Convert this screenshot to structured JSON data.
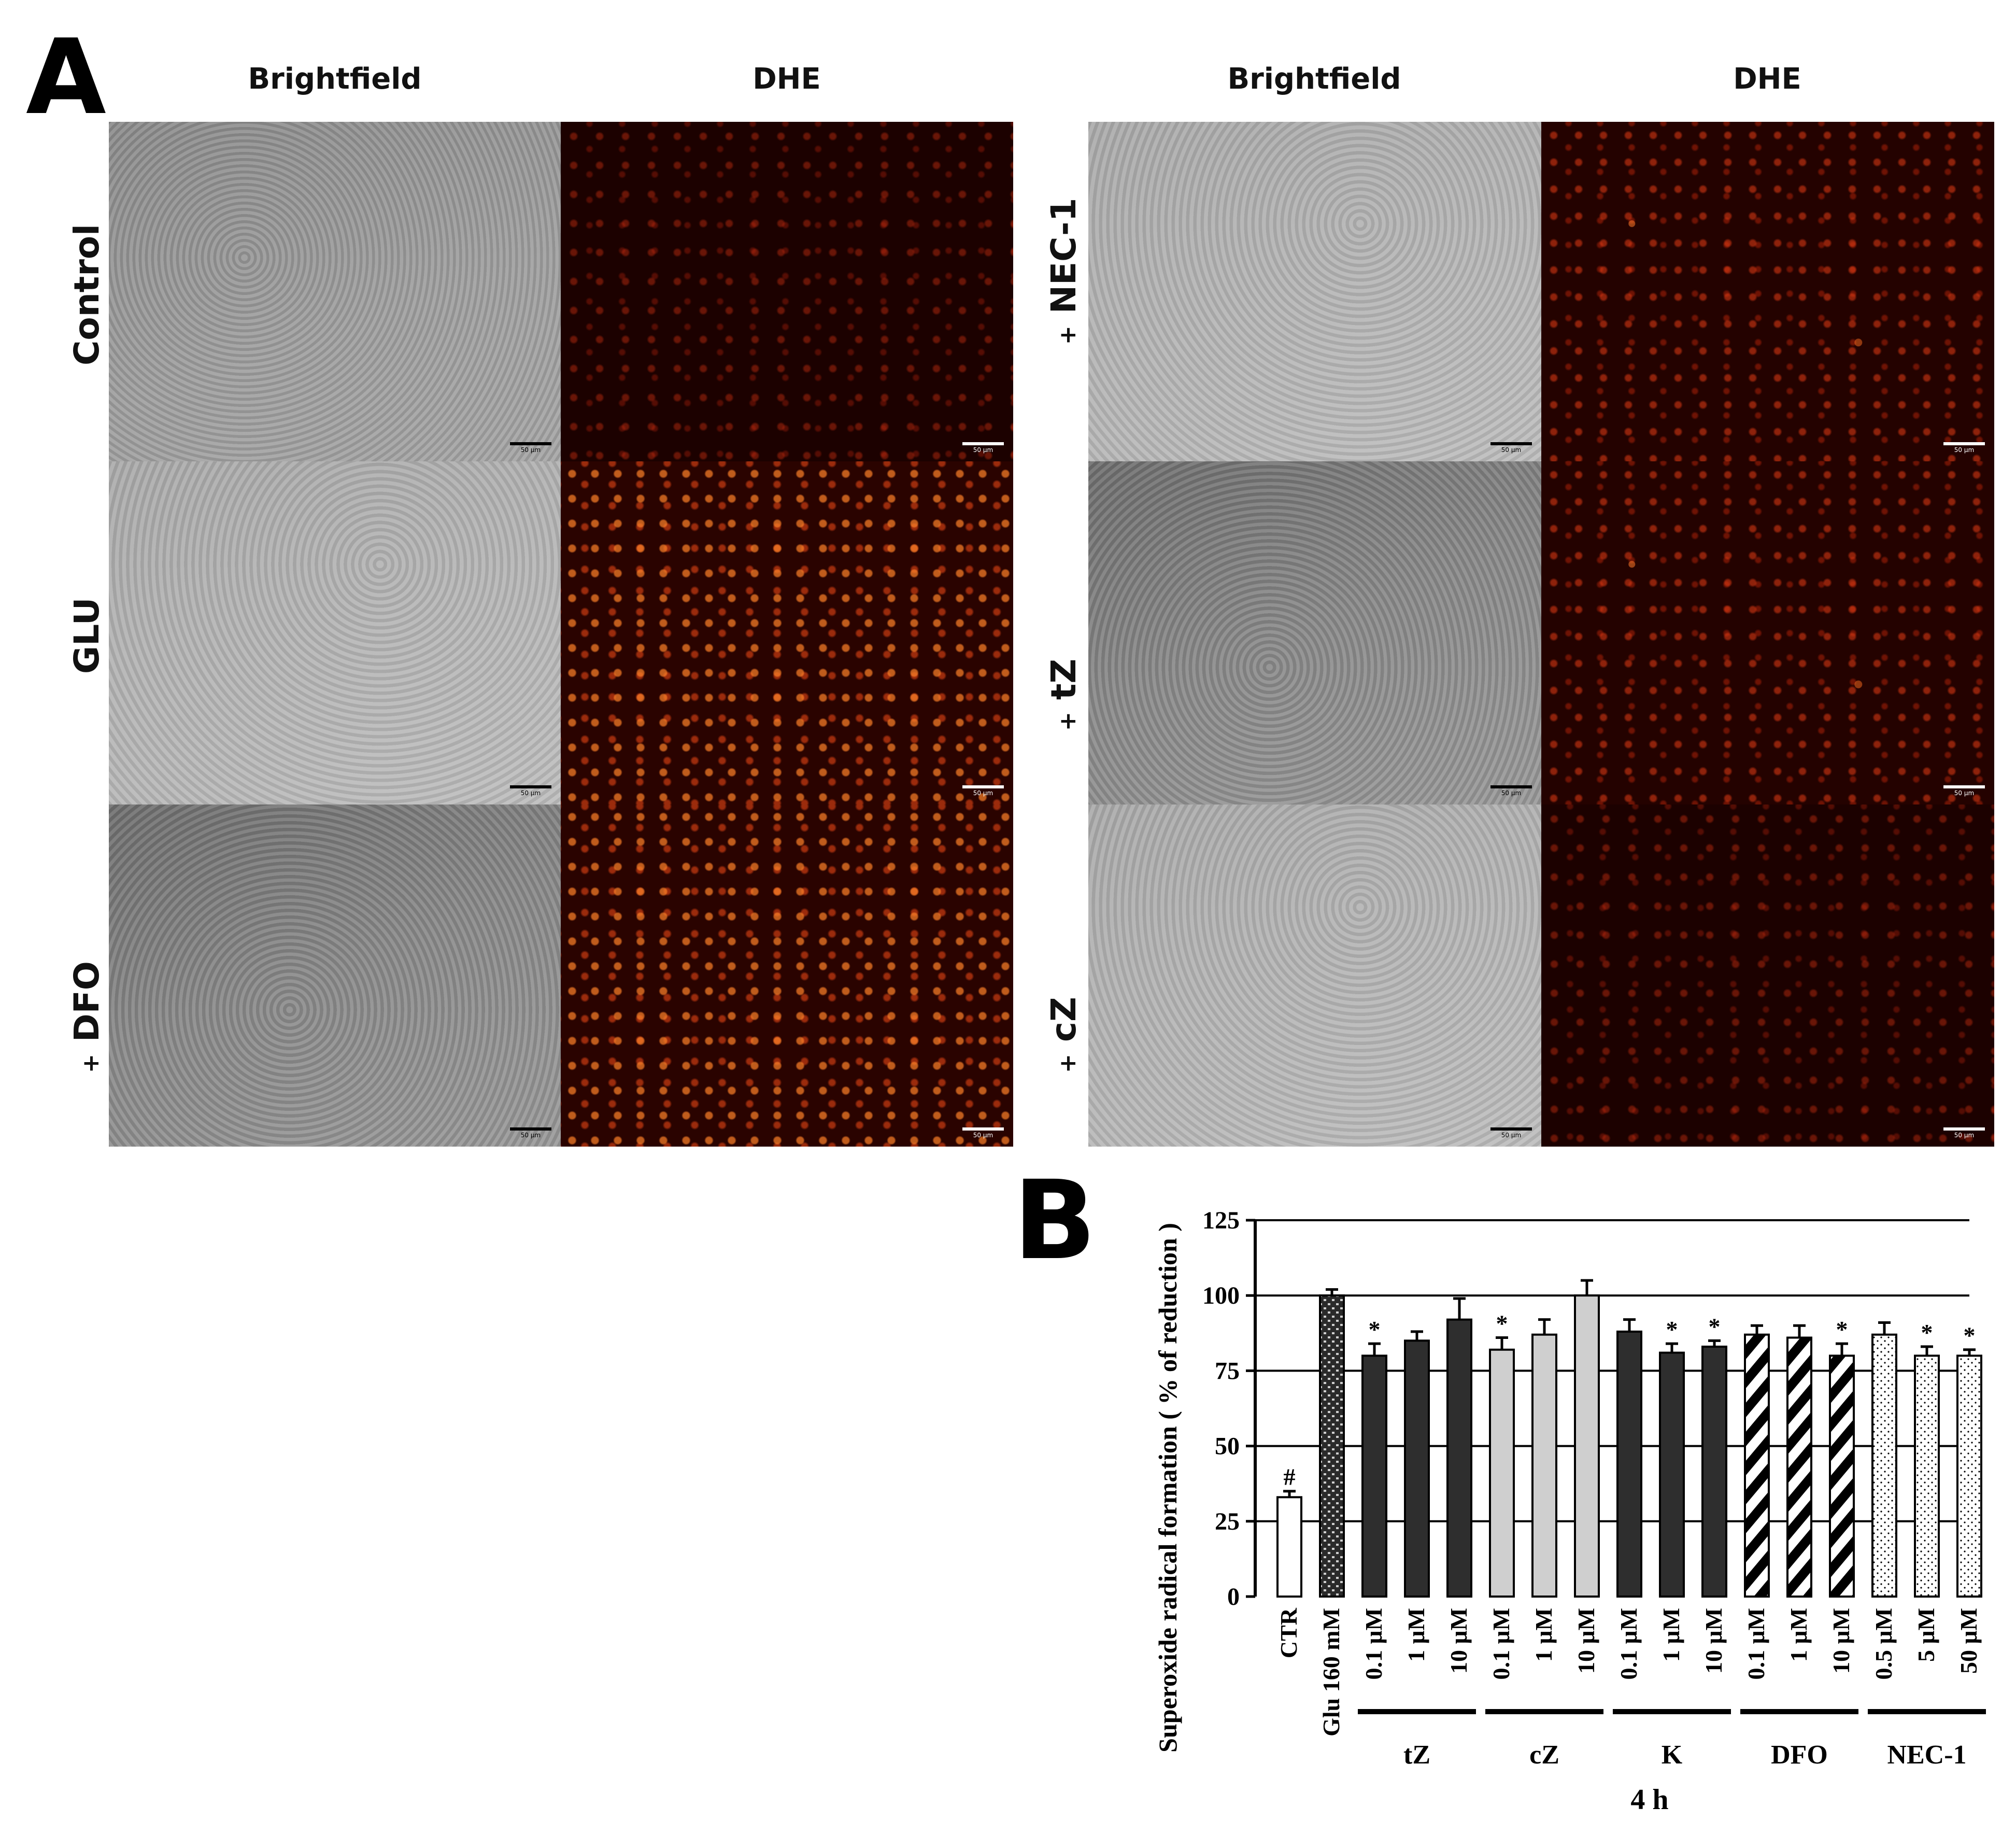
{
  "panel_a": {
    "letter": "A",
    "columns": [
      "Brightfield",
      "DHE",
      "Brightfield",
      "DHE"
    ],
    "left_rows": [
      {
        "label": "Control",
        "prefix": ""
      },
      {
        "label": "GLU",
        "prefix": ""
      },
      {
        "label": "DFO",
        "prefix": "+"
      }
    ],
    "right_rows": [
      {
        "label": "NEC-1",
        "prefix": "+"
      },
      {
        "label": "tZ",
        "prefix": "+"
      },
      {
        "label": "cZ",
        "prefix": "+"
      }
    ],
    "scale_bar": "50 μm"
  },
  "panel_b": {
    "letter": "B"
  },
  "chart_data": {
    "type": "bar",
    "title": "",
    "ylabel": "Superoxide radical formation ( % of reduction )",
    "xlabel": "4 h",
    "ylim": [
      0,
      125
    ],
    "yticks": [
      0,
      25,
      50,
      75,
      100,
      125
    ],
    "grid": "horizontal",
    "categories": [
      "CTR",
      "Glu 160 mM",
      "0.1 μM",
      "1 μM",
      "10 μM",
      "0.1 μM",
      "1 μM",
      "10 μM",
      "0.1 μM",
      "1 μM",
      "10 μM",
      "0.1 μM",
      "1 μM",
      "10 μM",
      "0.5 μM",
      "5 μM",
      "50 μM"
    ],
    "values": [
      33,
      100,
      80,
      85,
      92,
      82,
      87,
      100,
      88,
      81,
      83,
      87,
      86,
      80,
      87,
      80,
      80
    ],
    "errors": [
      2,
      2,
      4,
      3,
      7,
      4,
      5,
      5,
      4,
      3,
      2,
      3,
      4,
      4,
      4,
      3,
      2
    ],
    "markers": [
      "#",
      "",
      "*",
      "",
      "",
      "*",
      "",
      "",
      "",
      "*",
      "*",
      "",
      "",
      "*",
      "",
      "*",
      "*"
    ],
    "groups": [
      {
        "name": "tZ",
        "indices": [
          2,
          3,
          4
        ]
      },
      {
        "name": "cZ",
        "indices": [
          5,
          6,
          7
        ]
      },
      {
        "name": "K",
        "indices": [
          8,
          9,
          10
        ]
      },
      {
        "name": "DFO",
        "indices": [
          11,
          12,
          13
        ]
      },
      {
        "name": "NEC-1",
        "indices": [
          14,
          15,
          16
        ]
      }
    ],
    "styles": [
      "white",
      "brick",
      "dark",
      "dark",
      "dark",
      "light",
      "light",
      "light",
      "dark",
      "dark",
      "dark",
      "hatch",
      "hatch",
      "hatch",
      "dots",
      "dots",
      "dots"
    ]
  }
}
